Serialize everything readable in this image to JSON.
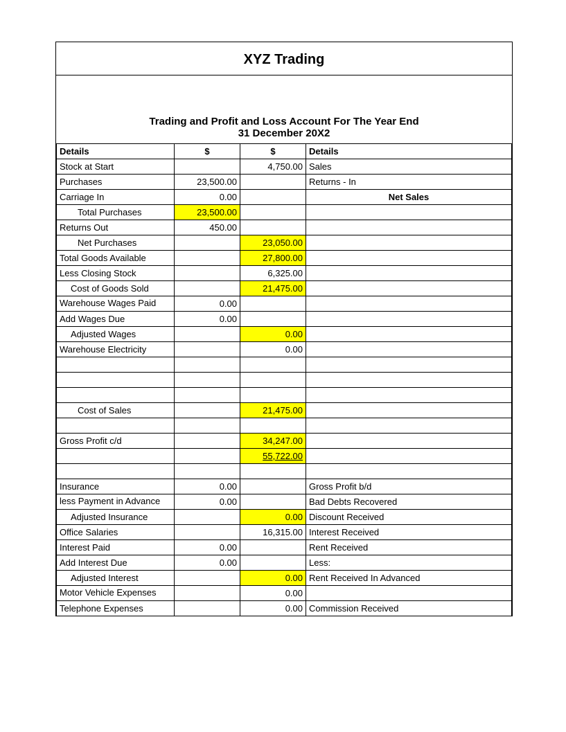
{
  "company_name": "XYZ Trading",
  "report_title_line1": "Trading and Profit and Loss Account For The Year End",
  "report_title_line2": "31 December 20X2",
  "highlight_color": "#ffff00",
  "text_color": "#000000",
  "background_color": "#ffffff",
  "font_family": "Arial",
  "header": {
    "details_left": "Details",
    "col_b": "$",
    "col_c": "$",
    "details_right": "Details"
  },
  "rows": [
    {
      "a": "Stock at Start",
      "b": "",
      "c": "4,750.00",
      "d": "Sales"
    },
    {
      "a": "Purchases",
      "b": "23,500.00",
      "c": "",
      "d": "Returns - In"
    },
    {
      "a": "Carriage In",
      "b": "0.00",
      "c": "",
      "d": "Net Sales",
      "d_center_bold": true
    },
    {
      "a": "Total Purchases",
      "b": "23,500.00",
      "c": "",
      "d": "",
      "indent": 2,
      "hl_b": true
    },
    {
      "a": "Returns Out",
      "b": "450.00",
      "c": "",
      "d": ""
    },
    {
      "a": "Net Purchases",
      "b": "",
      "c": "23,050.00",
      "d": "",
      "indent": 2,
      "hl_c": true
    },
    {
      "a": "Total Goods Available",
      "b": "",
      "c": "27,800.00",
      "d": "",
      "indent": 0,
      "hl_c": true,
      "tall": true
    },
    {
      "a": "Less Closing Stock",
      "b": "",
      "c": "6,325.00",
      "d": ""
    },
    {
      "a": "Cost of Goods Sold",
      "b": "",
      "c": "21,475.00",
      "d": "",
      "indent": 1,
      "hl_c": true
    },
    {
      "a": "Warehouse Wages Paid",
      "b": "0.00",
      "c": "",
      "d": "",
      "wrap": true,
      "tall": true
    },
    {
      "a": "Add Wages Due",
      "b": "0.00",
      "c": "",
      "d": ""
    },
    {
      "a": "Adjusted Wages",
      "b": "",
      "c": "0.00",
      "d": "",
      "indent": 1,
      "hl_c": true
    },
    {
      "a": "Warehouse Electricity",
      "b": "",
      "c": "0.00",
      "d": "",
      "tall": true
    },
    {
      "a": "",
      "b": "",
      "c": "",
      "d": ""
    },
    {
      "a": "",
      "b": "",
      "c": "",
      "d": ""
    },
    {
      "a": "",
      "b": "",
      "c": "",
      "d": ""
    },
    {
      "a": "Cost of Sales",
      "b": "",
      "c": "21,475.00",
      "d": "",
      "indent": 2,
      "hl_c": true
    },
    {
      "a": "",
      "b": "",
      "c": "",
      "d": ""
    },
    {
      "a": "Gross Profit c/d",
      "b": "",
      "c": "34,247.00",
      "d": "",
      "hl_c": true
    },
    {
      "a": "",
      "b": "",
      "c": "55,722.00",
      "d": "",
      "hl_c": true,
      "underline_c": true
    },
    {
      "a": "",
      "b": "",
      "c": "",
      "d": ""
    },
    {
      "a": "Insurance",
      "b": "0.00",
      "c": "",
      "d": "Gross Profit b/d"
    },
    {
      "a": "less Payment in Advance",
      "b": "0.00",
      "c": "",
      "d": "Bad Debts Recovered",
      "wrap": true,
      "tall": true
    },
    {
      "a": "Adjusted Insurance",
      "b": "",
      "c": "0.00",
      "d": "Discount Received",
      "indent": 1,
      "hl_c": true
    },
    {
      "a": "Office Salaries",
      "b": "",
      "c": "16,315.00",
      "d": "Interest Received"
    },
    {
      "a": "Interest Paid",
      "b": "0.00",
      "c": "",
      "d": "Rent Received"
    },
    {
      "a": "Add Interest Due",
      "b": "0.00",
      "c": "",
      "d": "Less:"
    },
    {
      "a": "Adjusted Interest",
      "b": "",
      "c": "0.00",
      "d": "Rent Received In Advanced",
      "indent": 1,
      "hl_c": true,
      "tall": true
    },
    {
      "a": "Motor Vehicle Expenses",
      "b": "",
      "c": "0.00",
      "d": "",
      "wrap": true,
      "tall": true
    },
    {
      "a": "Telephone Expenses",
      "b": "",
      "c": "0.00",
      "d": "Commission Received"
    }
  ]
}
